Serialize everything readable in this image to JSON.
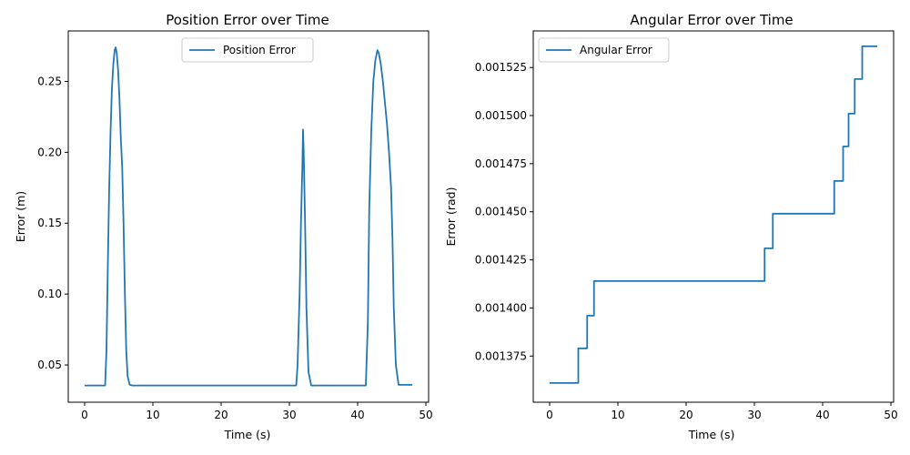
{
  "chart_data": [
    {
      "type": "line",
      "title": "Position Error over Time",
      "xlabel": "Time (s)",
      "ylabel": "Error (m)",
      "xlim": [
        -2.4,
        50.4
      ],
      "ylim": [
        0.0237,
        0.2856
      ],
      "xticks": [
        0,
        10,
        20,
        30,
        40,
        50
      ],
      "xtick_labels": [
        "0",
        "10",
        "20",
        "30",
        "40",
        "50"
      ],
      "yticks": [
        0.05,
        0.1,
        0.15,
        0.2,
        0.25
      ],
      "ytick_labels": [
        "0.05",
        "0.10",
        "0.15",
        "0.20",
        "0.25"
      ],
      "grid": false,
      "legend_position": "upper center",
      "color": "#1f77b4",
      "series": [
        {
          "name": "Position Error",
          "x": [
            0,
            3.0,
            3.2,
            3.4,
            3.6,
            3.8,
            4.0,
            4.2,
            4.4,
            4.55,
            4.7,
            4.9,
            5.1,
            5.3,
            5.5,
            5.7,
            5.9,
            6.1,
            6.3,
            6.6,
            7.0,
            31.0,
            31.2,
            31.5,
            31.7,
            31.9,
            32.0,
            32.1,
            32.3,
            32.5,
            32.8,
            33.2,
            41.2,
            41.5,
            41.7,
            42.0,
            42.3,
            42.6,
            42.9,
            43.1,
            43.4,
            43.7,
            44.0,
            44.3,
            44.6,
            44.9,
            45.1,
            45.3,
            45.6,
            46.0,
            48.0
          ],
          "y": [
            0.0355,
            0.0355,
            0.06,
            0.12,
            0.175,
            0.215,
            0.245,
            0.262,
            0.272,
            0.274,
            0.27,
            0.258,
            0.238,
            0.21,
            0.19,
            0.15,
            0.1,
            0.06,
            0.042,
            0.036,
            0.0355,
            0.0355,
            0.05,
            0.1,
            0.15,
            0.19,
            0.216,
            0.2,
            0.15,
            0.09,
            0.045,
            0.0355,
            0.0355,
            0.08,
            0.16,
            0.215,
            0.25,
            0.265,
            0.272,
            0.27,
            0.262,
            0.25,
            0.235,
            0.22,
            0.2,
            0.175,
            0.14,
            0.09,
            0.05,
            0.036,
            0.036
          ]
        }
      ]
    },
    {
      "type": "line",
      "title": "Angular Error over Time",
      "xlabel": "Time (s)",
      "ylabel": "Error (rad)",
      "xlim": [
        -2.4,
        50.4
      ],
      "ylim": [
        0.001351,
        0.001544
      ],
      "xticks": [
        0,
        10,
        20,
        30,
        40,
        50
      ],
      "xtick_labels": [
        "0",
        "10",
        "20",
        "30",
        "40",
        "50"
      ],
      "yticks": [
        0.001375,
        0.0014,
        0.001425,
        0.00145,
        0.001475,
        0.0015,
        0.001525
      ],
      "ytick_labels": [
        "0.001375",
        "0.001400",
        "0.001425",
        "0.001450",
        "0.001475",
        "0.001500",
        "0.001525"
      ],
      "grid": false,
      "legend_position": "upper left",
      "color": "#1f77b4",
      "series": [
        {
          "name": "Angular Error",
          "x": [
            0,
            4.2,
            4.2,
            5.5,
            5.5,
            6.5,
            6.5,
            31.5,
            31.5,
            32.7,
            32.7,
            41.7,
            41.7,
            43.0,
            43.0,
            43.8,
            43.8,
            44.7,
            44.7,
            45.8,
            45.8,
            48.0
          ],
          "y": [
            0.001361,
            0.001361,
            0.001379,
            0.001379,
            0.001396,
            0.001396,
            0.001414,
            0.001414,
            0.001431,
            0.001431,
            0.001449,
            0.001449,
            0.001466,
            0.001466,
            0.001484,
            0.001484,
            0.001501,
            0.001501,
            0.001519,
            0.001519,
            0.001536,
            0.001536
          ]
        }
      ]
    }
  ]
}
